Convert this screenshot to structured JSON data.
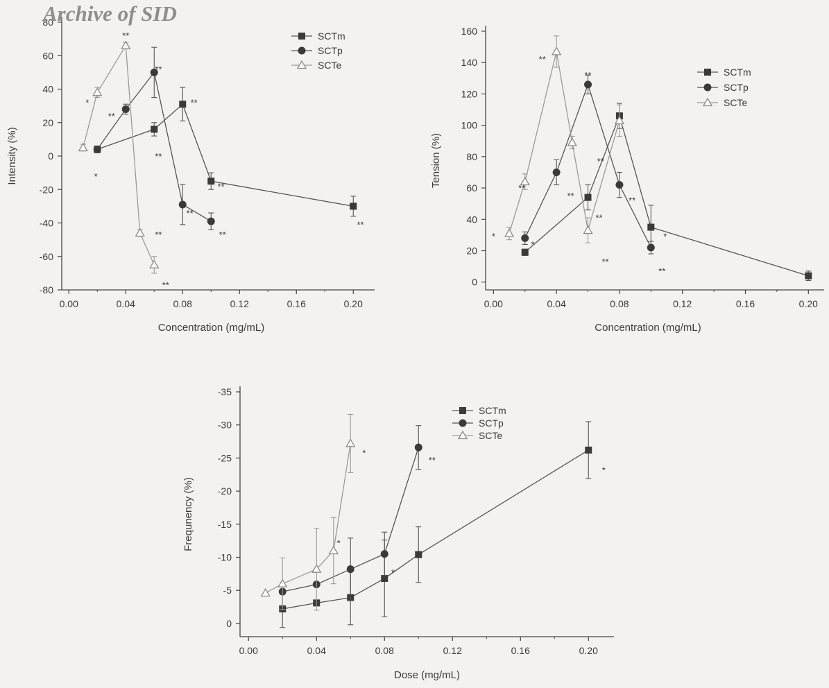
{
  "watermark": "Archive of SID",
  "chart_data": [
    {
      "type": "line",
      "xlabel": "Concentration (mg/mL)",
      "ylabel": "Intensity (%)",
      "xlim": [
        -0.005,
        0.215
      ],
      "ylim": [
        -80,
        80
      ],
      "xticks": [
        "0.00",
        "0.04",
        "0.08",
        "0.12",
        "0.16",
        "0.20"
      ],
      "yticks": [
        "80",
        "60",
        "40",
        "20",
        "0",
        "-20",
        "-40",
        "-60",
        "-80"
      ],
      "legend_position": "top-right",
      "series": [
        {
          "name": "SCTm",
          "marker": "square",
          "x": [
            0.02,
            0.06,
            0.08,
            0.1,
            0.2
          ],
          "y": [
            4,
            16,
            31,
            -15,
            -30
          ],
          "err": [
            2,
            4,
            10,
            5,
            6
          ]
        },
        {
          "name": "SCTp",
          "marker": "circle",
          "x": [
            0.02,
            0.04,
            0.06,
            0.08,
            0.1
          ],
          "y": [
            4,
            28,
            50,
            -29,
            -39
          ],
          "err": [
            2,
            3,
            15,
            12,
            5
          ]
        },
        {
          "name": "SCTe",
          "marker": "triangle",
          "x": [
            0.01,
            0.02,
            0.04,
            0.05,
            0.06
          ],
          "y": [
            5,
            38,
            66,
            -46,
            -65
          ],
          "err": [
            2,
            3,
            2,
            2,
            5
          ]
        }
      ],
      "annotations": [
        {
          "text": "*",
          "x": 0.013,
          "y": 30
        },
        {
          "text": "**",
          "x": 0.03,
          "y": 22
        },
        {
          "text": "**",
          "x": 0.04,
          "y": 70
        },
        {
          "text": "**",
          "x": 0.063,
          "y": 50
        },
        {
          "text": "**",
          "x": 0.088,
          "y": 30
        },
        {
          "text": "*",
          "x": 0.019,
          "y": -14
        },
        {
          "text": "**",
          "x": 0.063,
          "y": -2
        },
        {
          "text": "**",
          "x": 0.107,
          "y": -20
        },
        {
          "text": "**",
          "x": 0.085,
          "y": -36
        },
        {
          "text": "**",
          "x": 0.108,
          "y": -49
        },
        {
          "text": "**",
          "x": 0.063,
          "y": -49
        },
        {
          "text": "**",
          "x": 0.068,
          "y": -79
        },
        {
          "text": "**",
          "x": 0.205,
          "y": -43
        }
      ]
    },
    {
      "type": "line",
      "xlabel": "Concentration (mg/mL)",
      "ylabel": "Tension (%)",
      "xlim": [
        -0.005,
        0.21
      ],
      "ylim": [
        -5,
        160
      ],
      "xticks": [
        "0.00",
        "0.04",
        "0.08",
        "0.12",
        "0.16",
        "0.20"
      ],
      "yticks": [
        "160",
        "140",
        "120",
        "100",
        "80",
        "60",
        "40",
        "20",
        "0"
      ],
      "legend_position": "top-right",
      "series": [
        {
          "name": "SCTm",
          "marker": "square",
          "x": [
            0.02,
            0.06,
            0.08,
            0.1,
            0.2
          ],
          "y": [
            19,
            54,
            106,
            35,
            4
          ],
          "err": [
            2,
            8,
            8,
            14,
            3
          ]
        },
        {
          "name": "SCTp",
          "marker": "circle",
          "x": [
            0.02,
            0.04,
            0.06,
            0.08,
            0.1
          ],
          "y": [
            28,
            70,
            126,
            62,
            22
          ],
          "err": [
            4,
            8,
            6,
            8,
            4
          ]
        },
        {
          "name": "SCTe",
          "marker": "triangle",
          "x": [
            0.01,
            0.02,
            0.04,
            0.05,
            0.06,
            0.08
          ],
          "y": [
            31,
            64,
            147,
            89,
            33,
            103
          ],
          "err": [
            4,
            5,
            10,
            4,
            8,
            10
          ]
        }
      ],
      "annotations": [
        {
          "text": "*",
          "x": 0.0,
          "y": 27
        },
        {
          "text": "**",
          "x": 0.018,
          "y": 58
        },
        {
          "text": "*",
          "x": 0.025,
          "y": 22
        },
        {
          "text": "**",
          "x": 0.031,
          "y": 140
        },
        {
          "text": "**",
          "x": 0.049,
          "y": 53
        },
        {
          "text": "**",
          "x": 0.06,
          "y": 130
        },
        {
          "text": "**",
          "x": 0.068,
          "y": 75
        },
        {
          "text": "**",
          "x": 0.067,
          "y": 39
        },
        {
          "text": "**",
          "x": 0.071,
          "y": 11
        },
        {
          "text": "**",
          "x": 0.088,
          "y": 50
        },
        {
          "text": "*",
          "x": 0.109,
          "y": 27
        },
        {
          "text": "**",
          "x": 0.107,
          "y": 5
        }
      ]
    },
    {
      "type": "line",
      "xlabel": "Dose (mg/mL)",
      "ylabel": "Frequnency (%)",
      "xlim": [
        -0.005,
        0.215
      ],
      "ylim": [
        2,
        -35
      ],
      "xticks": [
        "0.00",
        "0.04",
        "0.08",
        "0.12",
        "0.16",
        "0.20"
      ],
      "yticks": [
        "-35",
        "-30",
        "-25",
        "-20",
        "-15",
        "-10",
        "-5",
        "0"
      ],
      "legend_position": "top-right",
      "series": [
        {
          "name": "SCTm",
          "marker": "square",
          "x": [
            0.02,
            0.04,
            0.06,
            0.08,
            0.1,
            0.2
          ],
          "y": [
            -2.2,
            -3.1,
            -3.9,
            -6.8,
            -10.4,
            -26.2
          ],
          "err": [
            2.8,
            null,
            4.1,
            5.8,
            4.2,
            4.3
          ]
        },
        {
          "name": "SCTp",
          "marker": "circle",
          "x": [
            0.02,
            0.04,
            0.06,
            0.08,
            0.1
          ],
          "y": [
            -4.8,
            -5.9,
            -8.2,
            -10.5,
            -26.6
          ],
          "err": [
            null,
            null,
            4.7,
            3.3,
            3.3
          ]
        },
        {
          "name": "SCTe",
          "marker": "triangle",
          "x": [
            0.01,
            0.02,
            0.04,
            0.05,
            0.06
          ],
          "y": [
            -4.6,
            -6.0,
            -8.2,
            -11.0,
            -27.2
          ],
          "err": [
            null,
            3.9,
            6.2,
            5.0,
            4.4
          ]
        }
      ],
      "annotations": [
        {
          "text": "*",
          "x": 0.068,
          "y": -25.3
        },
        {
          "text": "**",
          "x": 0.108,
          "y": -24.2
        },
        {
          "text": "*",
          "x": 0.209,
          "y": -22.7
        },
        {
          "text": "*",
          "x": 0.053,
          "y": -11.7
        },
        {
          "text": "*",
          "x": 0.085,
          "y": -7.2
        }
      ]
    }
  ]
}
